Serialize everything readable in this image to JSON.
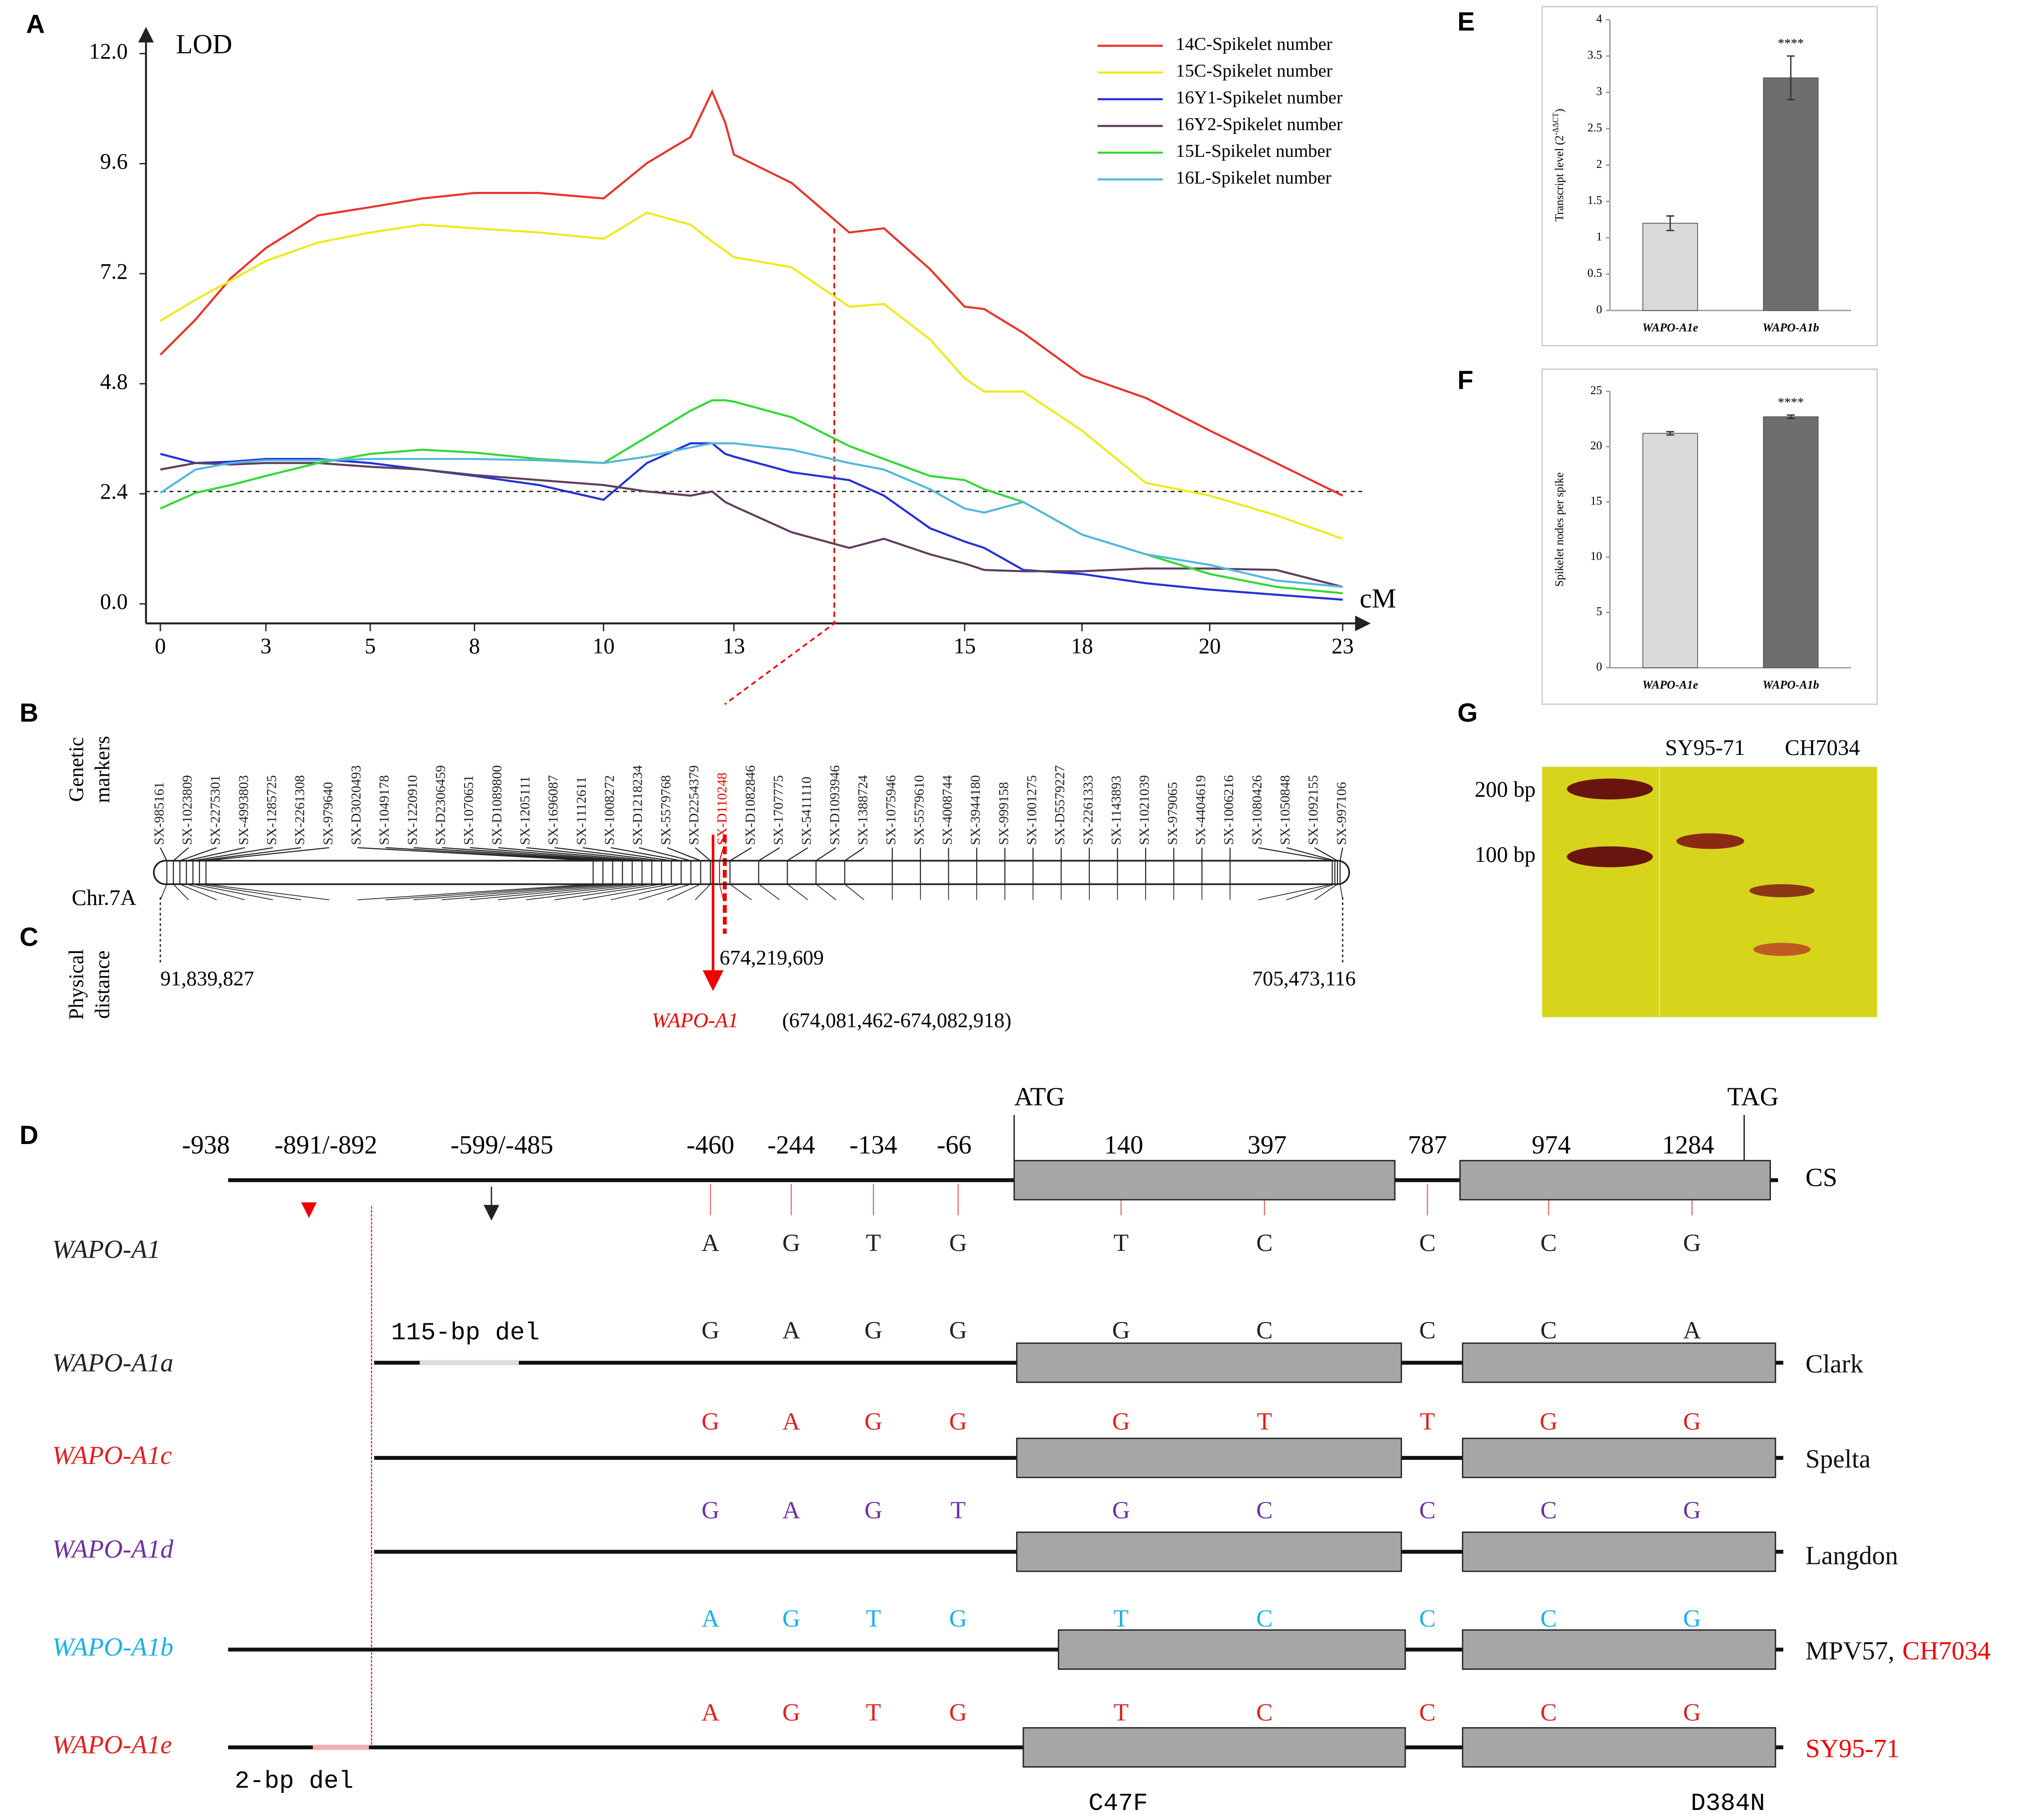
{
  "panel_labels": [
    "A",
    "B",
    "C",
    "D",
    "E",
    "F",
    "G"
  ],
  "chart_data": [
    {
      "type": "line",
      "ylabel": "LOD",
      "xlabel": "cM",
      "x": [
        0,
        1,
        2,
        3,
        4,
        5,
        6.5,
        8,
        9,
        10,
        11,
        12,
        12.5,
        12.8,
        13,
        13.5,
        14,
        14.3,
        14.7,
        15,
        15.5,
        16.5,
        18,
        19,
        20,
        21.5,
        23
      ],
      "xlim": [
        0,
        23
      ],
      "xticks": [
        0,
        3,
        5,
        8,
        10,
        13,
        15,
        18,
        20,
        23
      ],
      "ylim": [
        0,
        12
      ],
      "yticks": [
        {
          "value": 0,
          "label": "0.0"
        },
        2.4,
        4.8,
        7.2,
        9.6,
        {
          "value": 12,
          "label": "12.0"
        }
      ],
      "threshold": 2.45,
      "series": [
        {
          "name": "14C-Spikelet number",
          "color": "#e8342c",
          "values": [
            5.43,
            6.2,
            7.1,
            7.76,
            8.47,
            8.65,
            8.84,
            8.96,
            8.96,
            8.84,
            9.61,
            10.18,
            11.17,
            10.5,
            9.8,
            9.18,
            8.1,
            8.19,
            7.3,
            6.48,
            6.43,
            5.91,
            4.98,
            4.49,
            3.78,
            3.07,
            2.36
          ]
        },
        {
          "name": "15C-Spikelet number",
          "color": "#eeea1a",
          "values": [
            6.17,
            6.63,
            7.05,
            7.48,
            7.88,
            8.1,
            8.27,
            8.19,
            8.1,
            7.96,
            8.53,
            8.27,
            7.9,
            7.7,
            7.56,
            7.34,
            6.48,
            6.54,
            5.77,
            4.92,
            4.63,
            4.63,
            3.78,
            2.64,
            2.36,
            1.93,
            1.42
          ]
        },
        {
          "name": "16Y1-Spikelet number",
          "color": "#2431d8",
          "values": [
            3.27,
            3.07,
            3.1,
            3.16,
            3.16,
            3.07,
            2.93,
            2.79,
            2.59,
            2.27,
            3.07,
            3.5,
            3.5,
            3.27,
            3.21,
            2.87,
            2.7,
            2.36,
            1.65,
            1.36,
            1.22,
            0.74,
            0.65,
            0.45,
            0.31,
            0.2,
            0.09
          ]
        },
        {
          "name": "16Y2-Spikelet number",
          "color": "#5e405e",
          "values": [
            2.93,
            3.07,
            3.04,
            3.07,
            3.07,
            2.99,
            2.93,
            2.81,
            2.7,
            2.59,
            2.45,
            2.36,
            2.45,
            2.22,
            2.13,
            1.56,
            1.22,
            1.42,
            1.08,
            0.88,
            0.74,
            0.71,
            0.71,
            0.77,
            0.77,
            0.74,
            0.37
          ]
        },
        {
          "name": "15L-Spikelet number",
          "color": "#34d834",
          "values": [
            2.08,
            2.42,
            2.59,
            2.79,
            3.07,
            3.27,
            3.36,
            3.3,
            3.16,
            3.07,
            3.64,
            4.21,
            4.44,
            4.44,
            4.41,
            4.07,
            3.44,
            3.16,
            2.79,
            2.7,
            2.5,
            2.22,
            1.51,
            1.08,
            0.65,
            0.37,
            0.23
          ]
        },
        {
          "name": "16L-Spikelet number",
          "color": "#55b8dc",
          "values": [
            2.42,
            2.93,
            3.07,
            3.13,
            3.13,
            3.16,
            3.16,
            3.16,
            3.13,
            3.07,
            3.21,
            3.41,
            3.5,
            3.5,
            3.5,
            3.36,
            3.07,
            2.93,
            2.5,
            2.08,
            1.99,
            2.22,
            1.51,
            1.08,
            0.85,
            0.51,
            0.37
          ]
        }
      ]
    },
    {
      "type": "bar",
      "ylabel": [
        "Transcript level (2",
        "-ΔΔCT",
        ")"
      ],
      "categories": [
        "WAPO-A1e",
        "WAPO-A1b"
      ],
      "values": [
        1.2,
        3.2
      ],
      "errors": [
        0.1,
        0.3
      ],
      "colors": [
        "#d9d9d9",
        "#6e6e6e"
      ],
      "significance": [
        "",
        "****"
      ],
      "ylim": [
        0,
        4
      ],
      "yticks": [
        0,
        0.5,
        1,
        1.5,
        2,
        2.5,
        3,
        3.5,
        4
      ]
    },
    {
      "type": "bar",
      "ylabel": [
        "Spikelet nodes per spike"
      ],
      "categories": [
        "WAPO-A1e",
        "WAPO-A1b"
      ],
      "values": [
        21.2,
        22.7
      ],
      "errors": [
        0.15,
        0.15
      ],
      "colors": [
        "#d9d9d9",
        "#6e6e6e"
      ],
      "significance": [
        "",
        "****"
      ],
      "ylim": [
        0,
        25
      ],
      "yticks": [
        0,
        5,
        10,
        15,
        20,
        25
      ]
    }
  ],
  "genetic_markers": {
    "label": [
      "Genetic",
      "markers"
    ],
    "highlight": 20,
    "names": [
      "SX-985161",
      "SX-1023809",
      "SX-2275301",
      "SX-4993803",
      "SX-1285725",
      "SX-2261308",
      "SX-979640",
      "SX-D3020493",
      "SX-1049178",
      "SX-1220910",
      "SX-D2306459",
      "SX-1070651",
      "SX-D1089800",
      "SX-1205111",
      "SX-1696087",
      "SX-1112611",
      "SX-1008272",
      "SX-D1218234",
      "SX-5579768",
      "SX-D2254379",
      "SX-D110248",
      "SX-D1082846",
      "SX-1707775",
      "SX-5411110",
      "SX-D1093946",
      "SX-1388724",
      "SX-1075946",
      "SX-5579610",
      "SX-4008744",
      "SX-3944180",
      "SX-999158",
      "SX-1001275",
      "SX-D5579227",
      "SX-2261333",
      "SX-1143893",
      "SX-1021039",
      "SX-979065",
      "SX-4404619",
      "SX-1006216",
      "SX-1080426",
      "SX-1050848",
      "SX-1092155",
      "SX-997106"
    ]
  },
  "chromosome": "Chr.7A",
  "physical_distance": {
    "label": [
      "Physical",
      "distance"
    ],
    "positions": [
      "91,839,827",
      "674,219,609",
      "705,473,116"
    ]
  },
  "gene": {
    "name": "WAPO-A1",
    "range": "(674,081,462-674,082,918)"
  },
  "gene_diagram": {
    "reference": "CS",
    "positions": [
      "-938",
      "-891/-892",
      "-599/-485",
      "-460",
      "-244",
      "-134",
      "-66",
      "140",
      "397",
      "787",
      "974",
      "1284"
    ],
    "codons": [
      "ATG",
      "TAG"
    ],
    "alleles": [
      {
        "name": "WAPO-A1",
        "color": "#222222",
        "bases": [
          "A",
          "G",
          "T",
          "G",
          "T",
          "C",
          "C",
          "C",
          "G"
        ],
        "source": []
      },
      {
        "name": "WAPO-A1a",
        "color": "#222222",
        "bases": [
          "G",
          "A",
          "G",
          "G",
          "G",
          "C",
          "C",
          "C",
          "A"
        ],
        "source": [
          "Clark"
        ]
      },
      {
        "name": "WAPO-A1c",
        "color": "#e02020",
        "bases": [
          "G",
          "A",
          "G",
          "G",
          "G",
          "T",
          "T",
          "G",
          "G"
        ],
        "source": [
          "Spelta"
        ]
      },
      {
        "name": "WAPO-A1d",
        "color": "#7030a0",
        "bases": [
          "G",
          "A",
          "G",
          "T",
          "G",
          "C",
          "C",
          "C",
          "G"
        ],
        "source": [
          "Langdon"
        ]
      },
      {
        "name": "WAPO-A1b",
        "color": "#1ab0ea",
        "bases": [
          "A",
          "G",
          "T",
          "G",
          "T",
          "C",
          "C",
          "C",
          "G"
        ],
        "source": [
          "MPV57,",
          "CH7034"
        ]
      },
      {
        "name": "WAPO-A1e",
        "color": "#e02020",
        "bases": [
          "A",
          "G",
          "T",
          "G",
          "T",
          "C",
          "C",
          "C",
          "G"
        ],
        "source": [
          "SY95-71"
        ]
      }
    ],
    "annotations": [
      "115-bp del",
      "2-bp del",
      "C47F",
      "D384N"
    ]
  },
  "gel": {
    "ladder": [
      "200 bp",
      "100 bp"
    ],
    "lanes": [
      "SY95-71",
      "CH7034"
    ]
  }
}
